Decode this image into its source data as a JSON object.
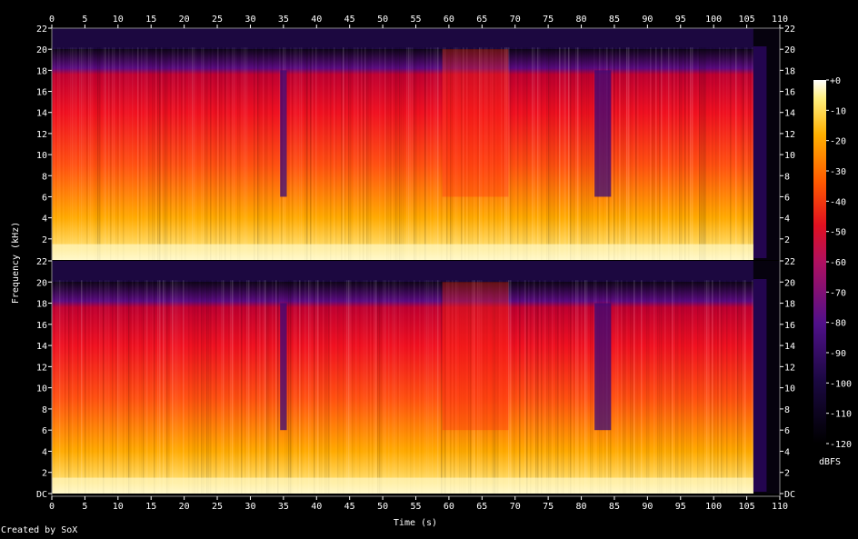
{
  "chart_data": {
    "type": "heatmap",
    "title": "",
    "xlabel": "Time (s)",
    "ylabel": "Frequency (kHz)",
    "colorbar_label": "dBFS",
    "x_ticks": [
      "0",
      "5",
      "10",
      "15",
      "20",
      "25",
      "30",
      "35",
      "40",
      "45",
      "50",
      "55",
      "60",
      "65",
      "70",
      "75",
      "80",
      "85",
      "90",
      "95",
      "100",
      "105",
      "110"
    ],
    "x_range": [
      0,
      110
    ],
    "y_range_khz": [
      0,
      22
    ],
    "y_ticks_upper": [
      "22",
      "20",
      "18",
      "16",
      "14",
      "12",
      "10",
      "8",
      "6",
      "4",
      "2"
    ],
    "y_ticks_lower": [
      "22",
      "20",
      "18",
      "16",
      "14",
      "12",
      "10",
      "8",
      "6",
      "4",
      "2",
      "DC"
    ],
    "colorbar_ticks": [
      "+0",
      "-10",
      "-20",
      "-30",
      "-40",
      "-50",
      "-60",
      "-70",
      "-80",
      "-90",
      "-100",
      "-110",
      "-120"
    ],
    "colorbar_range_db": [
      -120,
      0
    ],
    "channels": [
      {
        "name": "",
        "cutoff_khz": 20,
        "end_time_s": 106
      },
      {
        "name": "",
        "cutoff_khz": 20,
        "end_time_s": 106
      }
    ],
    "quiet_segments_s": [
      [
        34.5,
        35.5
      ],
      [
        82,
        84.5
      ]
    ],
    "dense_segments_s": [
      [
        59,
        69
      ]
    ],
    "colors": {
      "low": "#000000",
      "mid_low": "#3a0a78",
      "mid": "#c01040",
      "mid_high": "#ff2a00",
      "high": "#ffb000",
      "peak": "#ffffff"
    }
  },
  "footer": {
    "credit": "Created by SoX"
  }
}
